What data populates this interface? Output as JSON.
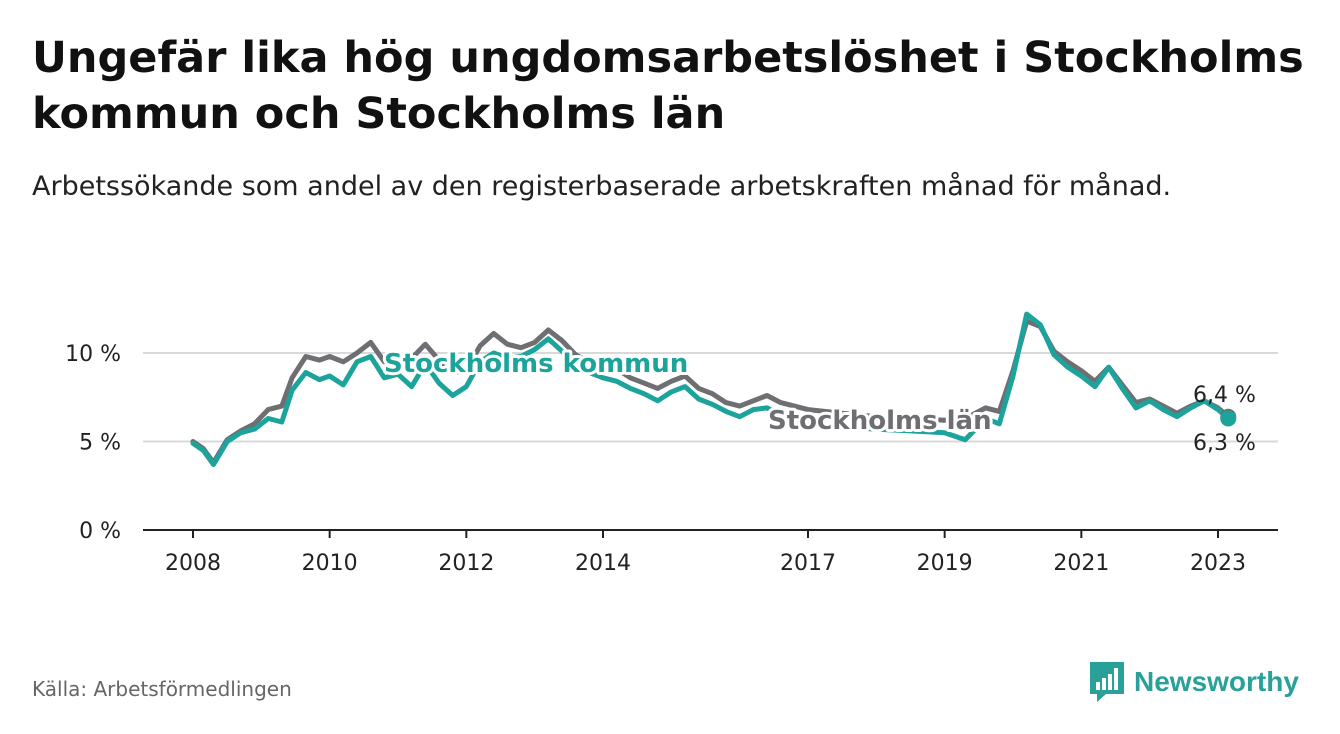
{
  "header": {
    "title": "Ungefär lika hög ungdomsarbetslöshet i Stockholms kommun och Stockholms län",
    "subtitle": "Arbetssökande som andel av den registerbaserade arbetskraften månad för månad."
  },
  "footer": {
    "source": "Källa: Arbetsförmedlingen",
    "brand": "Newsworthy"
  },
  "colors": {
    "kommun": "#1ba39c",
    "lan": "#6e6e73",
    "grid": "#d9d9d9",
    "axis": "#222222",
    "brand": "#2aa198"
  },
  "chart_data": {
    "type": "line",
    "title": "Ungefär lika hög ungdomsarbetslöshet i Stockholms kommun och Stockholms län",
    "xlabel": "",
    "ylabel": "",
    "ylim": [
      0,
      12.5
    ],
    "xlim": [
      2007.25,
      2023.85
    ],
    "x_ticks": [
      2008,
      2010,
      2012,
      2014,
      2017,
      2019,
      2021,
      2023
    ],
    "y_ticks": [
      0,
      5,
      10
    ],
    "y_tick_labels": [
      "0 %",
      "5 %",
      "10 %"
    ],
    "grid": true,
    "end_labels": {
      "lan": "6,4 %",
      "kommun": "6,3 %"
    },
    "series": [
      {
        "name": "Stockholms län",
        "key": "lan",
        "x": [
          2008.0,
          2008.15,
          2008.3,
          2008.5,
          2008.7,
          2008.9,
          2009.1,
          2009.3,
          2009.45,
          2009.65,
          2009.85,
          2010.0,
          2010.2,
          2010.4,
          2010.6,
          2010.8,
          2011.0,
          2011.2,
          2011.4,
          2011.6,
          2011.8,
          2012.0,
          2012.2,
          2012.4,
          2012.6,
          2012.8,
          2013.0,
          2013.2,
          2013.4,
          2013.6,
          2013.8,
          2014.0,
          2014.2,
          2014.4,
          2014.6,
          2014.8,
          2015.0,
          2015.2,
          2015.4,
          2015.6,
          2015.8,
          2016.0,
          2016.2,
          2016.4,
          2016.6,
          2016.8,
          2017.0,
          2017.5,
          2018.0,
          2018.5,
          2019.0,
          2019.3,
          2019.6,
          2019.8,
          2020.0,
          2020.2,
          2020.4,
          2020.6,
          2020.8,
          2021.0,
          2021.2,
          2021.4,
          2021.6,
          2021.8,
          2022.0,
          2022.2,
          2022.4,
          2022.6,
          2022.8,
          2023.0,
          2023.15
        ],
        "values": [
          5.0,
          4.6,
          3.8,
          5.1,
          5.6,
          6.0,
          6.8,
          7.0,
          8.6,
          9.8,
          9.6,
          9.8,
          9.5,
          10.0,
          10.6,
          9.5,
          9.2,
          9.7,
          10.5,
          9.6,
          8.9,
          9.0,
          10.4,
          11.1,
          10.5,
          10.3,
          10.6,
          11.3,
          10.7,
          9.9,
          9.5,
          9.4,
          9.1,
          8.6,
          8.3,
          8.0,
          8.4,
          8.7,
          8.0,
          7.7,
          7.2,
          7.0,
          7.3,
          7.6,
          7.2,
          7.0,
          6.8,
          6.6,
          6.4,
          6.3,
          6.2,
          6.3,
          6.9,
          6.7,
          9.0,
          11.8,
          11.5,
          10.1,
          9.5,
          9.0,
          8.4,
          9.2,
          8.2,
          7.2,
          7.4,
          7.0,
          6.6,
          7.0,
          7.3,
          6.9,
          6.4
        ]
      },
      {
        "name": "Stockholms kommun",
        "key": "kommun",
        "x": [
          2008.0,
          2008.15,
          2008.3,
          2008.5,
          2008.7,
          2008.9,
          2009.1,
          2009.3,
          2009.45,
          2009.65,
          2009.85,
          2010.0,
          2010.2,
          2010.4,
          2010.6,
          2010.8,
          2011.0,
          2011.2,
          2011.4,
          2011.6,
          2011.8,
          2012.0,
          2012.2,
          2012.4,
          2012.6,
          2012.8,
          2013.0,
          2013.2,
          2013.4,
          2013.6,
          2013.8,
          2014.0,
          2014.2,
          2014.4,
          2014.6,
          2014.8,
          2015.0,
          2015.2,
          2015.4,
          2015.6,
          2015.8,
          2016.0,
          2016.2,
          2016.4,
          2016.6,
          2016.8,
          2017.0,
          2017.5,
          2018.0,
          2018.5,
          2019.0,
          2019.3,
          2019.6,
          2019.8,
          2020.0,
          2020.2,
          2020.4,
          2020.6,
          2020.8,
          2021.0,
          2021.2,
          2021.4,
          2021.6,
          2021.8,
          2022.0,
          2022.2,
          2022.4,
          2022.6,
          2022.8,
          2023.0,
          2023.15
        ],
        "values": [
          4.9,
          4.5,
          3.7,
          5.0,
          5.5,
          5.7,
          6.3,
          6.1,
          7.9,
          8.9,
          8.5,
          8.7,
          8.2,
          9.5,
          9.8,
          8.6,
          8.8,
          8.1,
          9.4,
          8.3,
          7.6,
          8.1,
          9.5,
          10.0,
          9.7,
          9.8,
          10.2,
          10.8,
          10.1,
          9.3,
          8.9,
          8.6,
          8.4,
          8.0,
          7.7,
          7.3,
          7.8,
          8.1,
          7.4,
          7.1,
          6.7,
          6.4,
          6.8,
          6.9,
          6.5,
          6.3,
          6.0,
          5.8,
          5.7,
          5.6,
          5.5,
          5.1,
          6.3,
          6.0,
          8.7,
          12.2,
          11.6,
          9.9,
          9.2,
          8.7,
          8.1,
          9.2,
          8.0,
          6.9,
          7.3,
          6.8,
          6.4,
          6.9,
          7.3,
          6.8,
          6.3
        ]
      }
    ]
  }
}
